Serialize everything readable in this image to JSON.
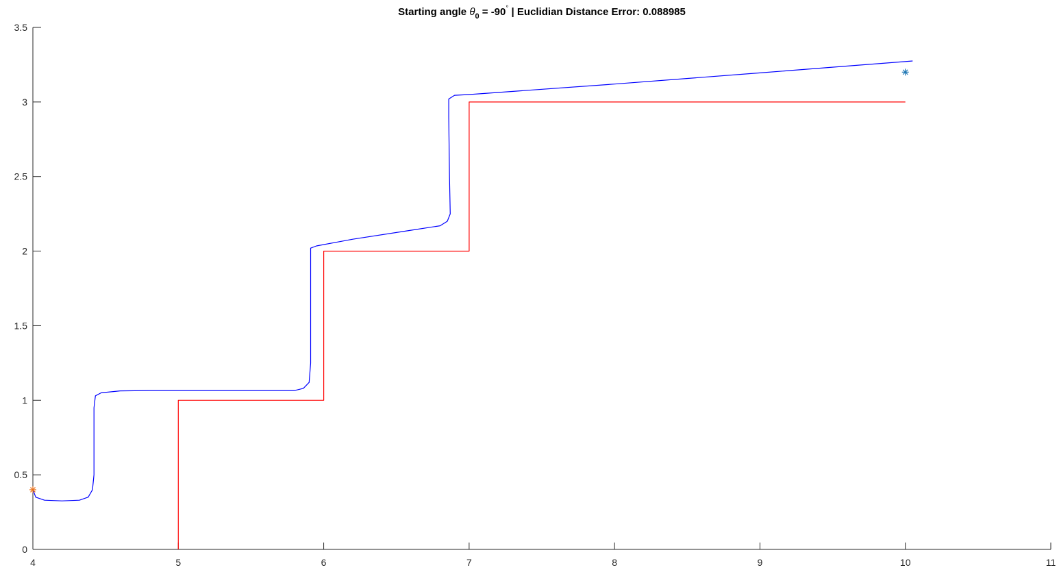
{
  "chart_data": {
    "type": "line",
    "title_parts": {
      "prefix": "Starting angle ",
      "theta": "θ",
      "sub": "0",
      "mid": " = -90",
      "deg": "°",
      "suffix": "  |  Euclidian Distance Error: 0.088985"
    },
    "xlim": [
      4,
      11
    ],
    "ylim": [
      0,
      3.5
    ],
    "xticks": [
      "4",
      "5",
      "6",
      "7",
      "8",
      "9",
      "10",
      "11"
    ],
    "yticks": [
      "0",
      "0.5",
      "1",
      "1.5",
      "2",
      "2.5",
      "3",
      "3.5"
    ],
    "grid": false,
    "series": [
      {
        "color": "#ff0000",
        "points": [
          [
            5,
            0
          ],
          [
            5,
            1
          ],
          [
            6,
            1
          ],
          [
            6,
            2
          ],
          [
            7,
            2
          ],
          [
            7,
            3
          ],
          [
            10,
            3
          ]
        ]
      },
      {
        "color": "#0000ff",
        "points": [
          [
            4.0,
            0.4
          ],
          [
            4.02,
            0.35
          ],
          [
            4.08,
            0.33
          ],
          [
            4.2,
            0.325
          ],
          [
            4.32,
            0.33
          ],
          [
            4.38,
            0.35
          ],
          [
            4.41,
            0.4
          ],
          [
            4.42,
            0.5
          ],
          [
            4.42,
            0.95
          ],
          [
            4.43,
            1.03
          ],
          [
            4.47,
            1.05
          ],
          [
            4.6,
            1.063
          ],
          [
            4.8,
            1.065
          ],
          [
            5.5,
            1.065
          ],
          [
            5.8,
            1.065
          ],
          [
            5.86,
            1.08
          ],
          [
            5.9,
            1.12
          ],
          [
            5.91,
            1.25
          ],
          [
            5.91,
            1.9
          ],
          [
            5.91,
            2.02
          ],
          [
            5.95,
            2.035
          ],
          [
            6.2,
            2.08
          ],
          [
            6.6,
            2.14
          ],
          [
            6.8,
            2.17
          ],
          [
            6.85,
            2.2
          ],
          [
            6.87,
            2.25
          ],
          [
            6.865,
            2.5
          ],
          [
            6.86,
            2.9
          ],
          [
            6.86,
            3.02
          ],
          [
            6.9,
            3.045
          ],
          [
            7.0,
            3.05
          ],
          [
            8.0,
            3.12
          ],
          [
            9.0,
            3.195
          ],
          [
            10.05,
            3.275
          ]
        ]
      }
    ],
    "markers": [
      {
        "x": 4.0,
        "y": 0.4,
        "symbol": "*",
        "color": "#e8701a"
      },
      {
        "x": 10.0,
        "y": 3.2,
        "symbol": "*",
        "color": "#1f77b4"
      }
    ]
  }
}
